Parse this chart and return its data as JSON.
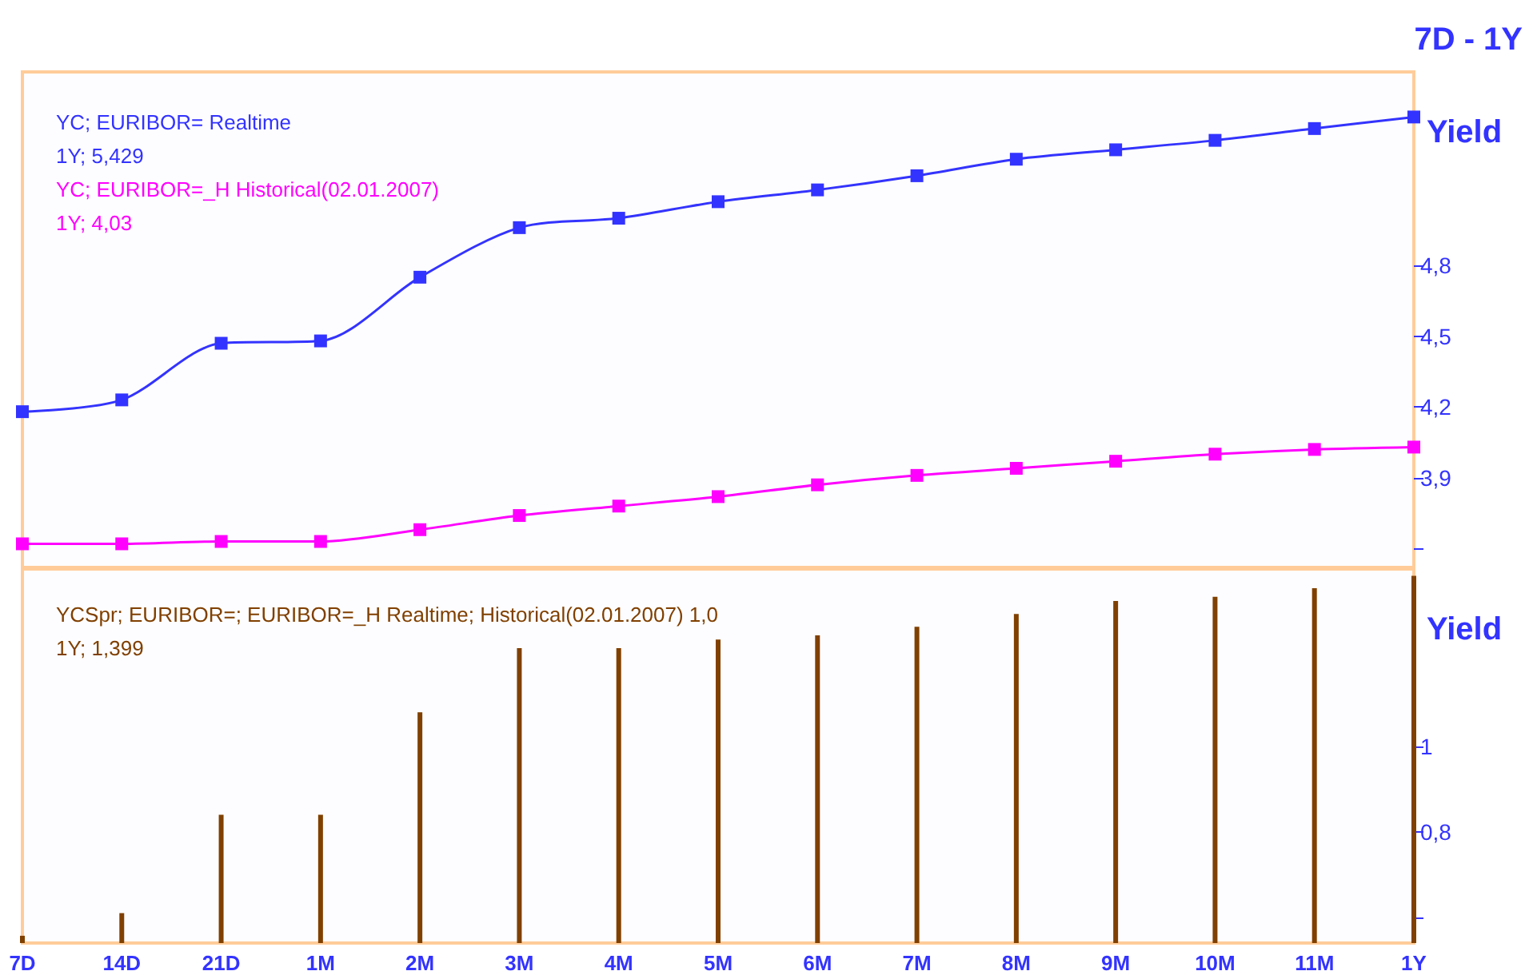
{
  "chart_data": [
    {
      "type": "line",
      "title": "7D - 1Y",
      "ylabel": "Yield",
      "categories": [
        null,
        null,
        null,
        null,
        null,
        null,
        null,
        null,
        null,
        null,
        null,
        null,
        null,
        null,
        null
      ],
      "series": [
        {
          "name": "YC; EURIBOR= Realtime",
          "color": "#3333ff",
          "values": [
            4.18,
            4.23,
            4.47,
            4.48,
            4.75,
            4.96,
            5.0,
            5.07,
            5.12,
            5.18,
            5.25,
            5.29,
            5.33,
            5.38,
            5.429
          ]
        },
        {
          "name": "YC; EURIBOR=_H Historical(02.01.2007)",
          "color": "#ff00ff",
          "values": [
            3.62,
            3.62,
            3.63,
            3.63,
            3.68,
            3.74,
            3.78,
            3.82,
            3.87,
            3.91,
            3.94,
            3.97,
            4.0,
            4.02,
            4.03
          ]
        }
      ],
      "annotations": [
        "1Y; 5,429",
        "1Y; 4,03"
      ],
      "ylim": [
        3.52,
        5.62
      ],
      "yticks": [
        {
          "value": 3.6,
          "label": null
        },
        {
          "value": 3.9,
          "label": "3,9"
        },
        {
          "value": 4.2,
          "label": "4,2"
        },
        {
          "value": 4.5,
          "label": "4,5"
        },
        {
          "value": 4.8,
          "label": "4,8"
        }
      ],
      "marker": "square",
      "legend": "top left",
      "tick_labels": "y"
    },
    {
      "type": "bar",
      "ylabel": "Yield",
      "categories": [
        "7D",
        "14D",
        "21D",
        "1M",
        "2M",
        "3M",
        "4M",
        "5M",
        "6M",
        "7M",
        "8M",
        "9M",
        "10M",
        "11M",
        "1Y"
      ],
      "series": [
        {
          "name": "YCSpr; EURIBOR=; EURIBOR=_H Realtime; Historical(02.01.2007) 1,0",
          "color": "#804000",
          "values": [
            0.557,
            0.61,
            0.84,
            0.84,
            1.08,
            1.23,
            1.23,
            1.25,
            1.26,
            1.28,
            1.31,
            1.34,
            1.35,
            1.37,
            1.399
          ]
        }
      ],
      "annotations": [
        "1Y; 1,399"
      ],
      "ylim": [
        0.54,
        1.415
      ],
      "yticks": [
        {
          "value": 0.6,
          "label": null
        },
        {
          "value": 0.8,
          "label": "0,8"
        },
        {
          "value": 1,
          "label": "1"
        }
      ],
      "legend": "top left"
    }
  ]
}
